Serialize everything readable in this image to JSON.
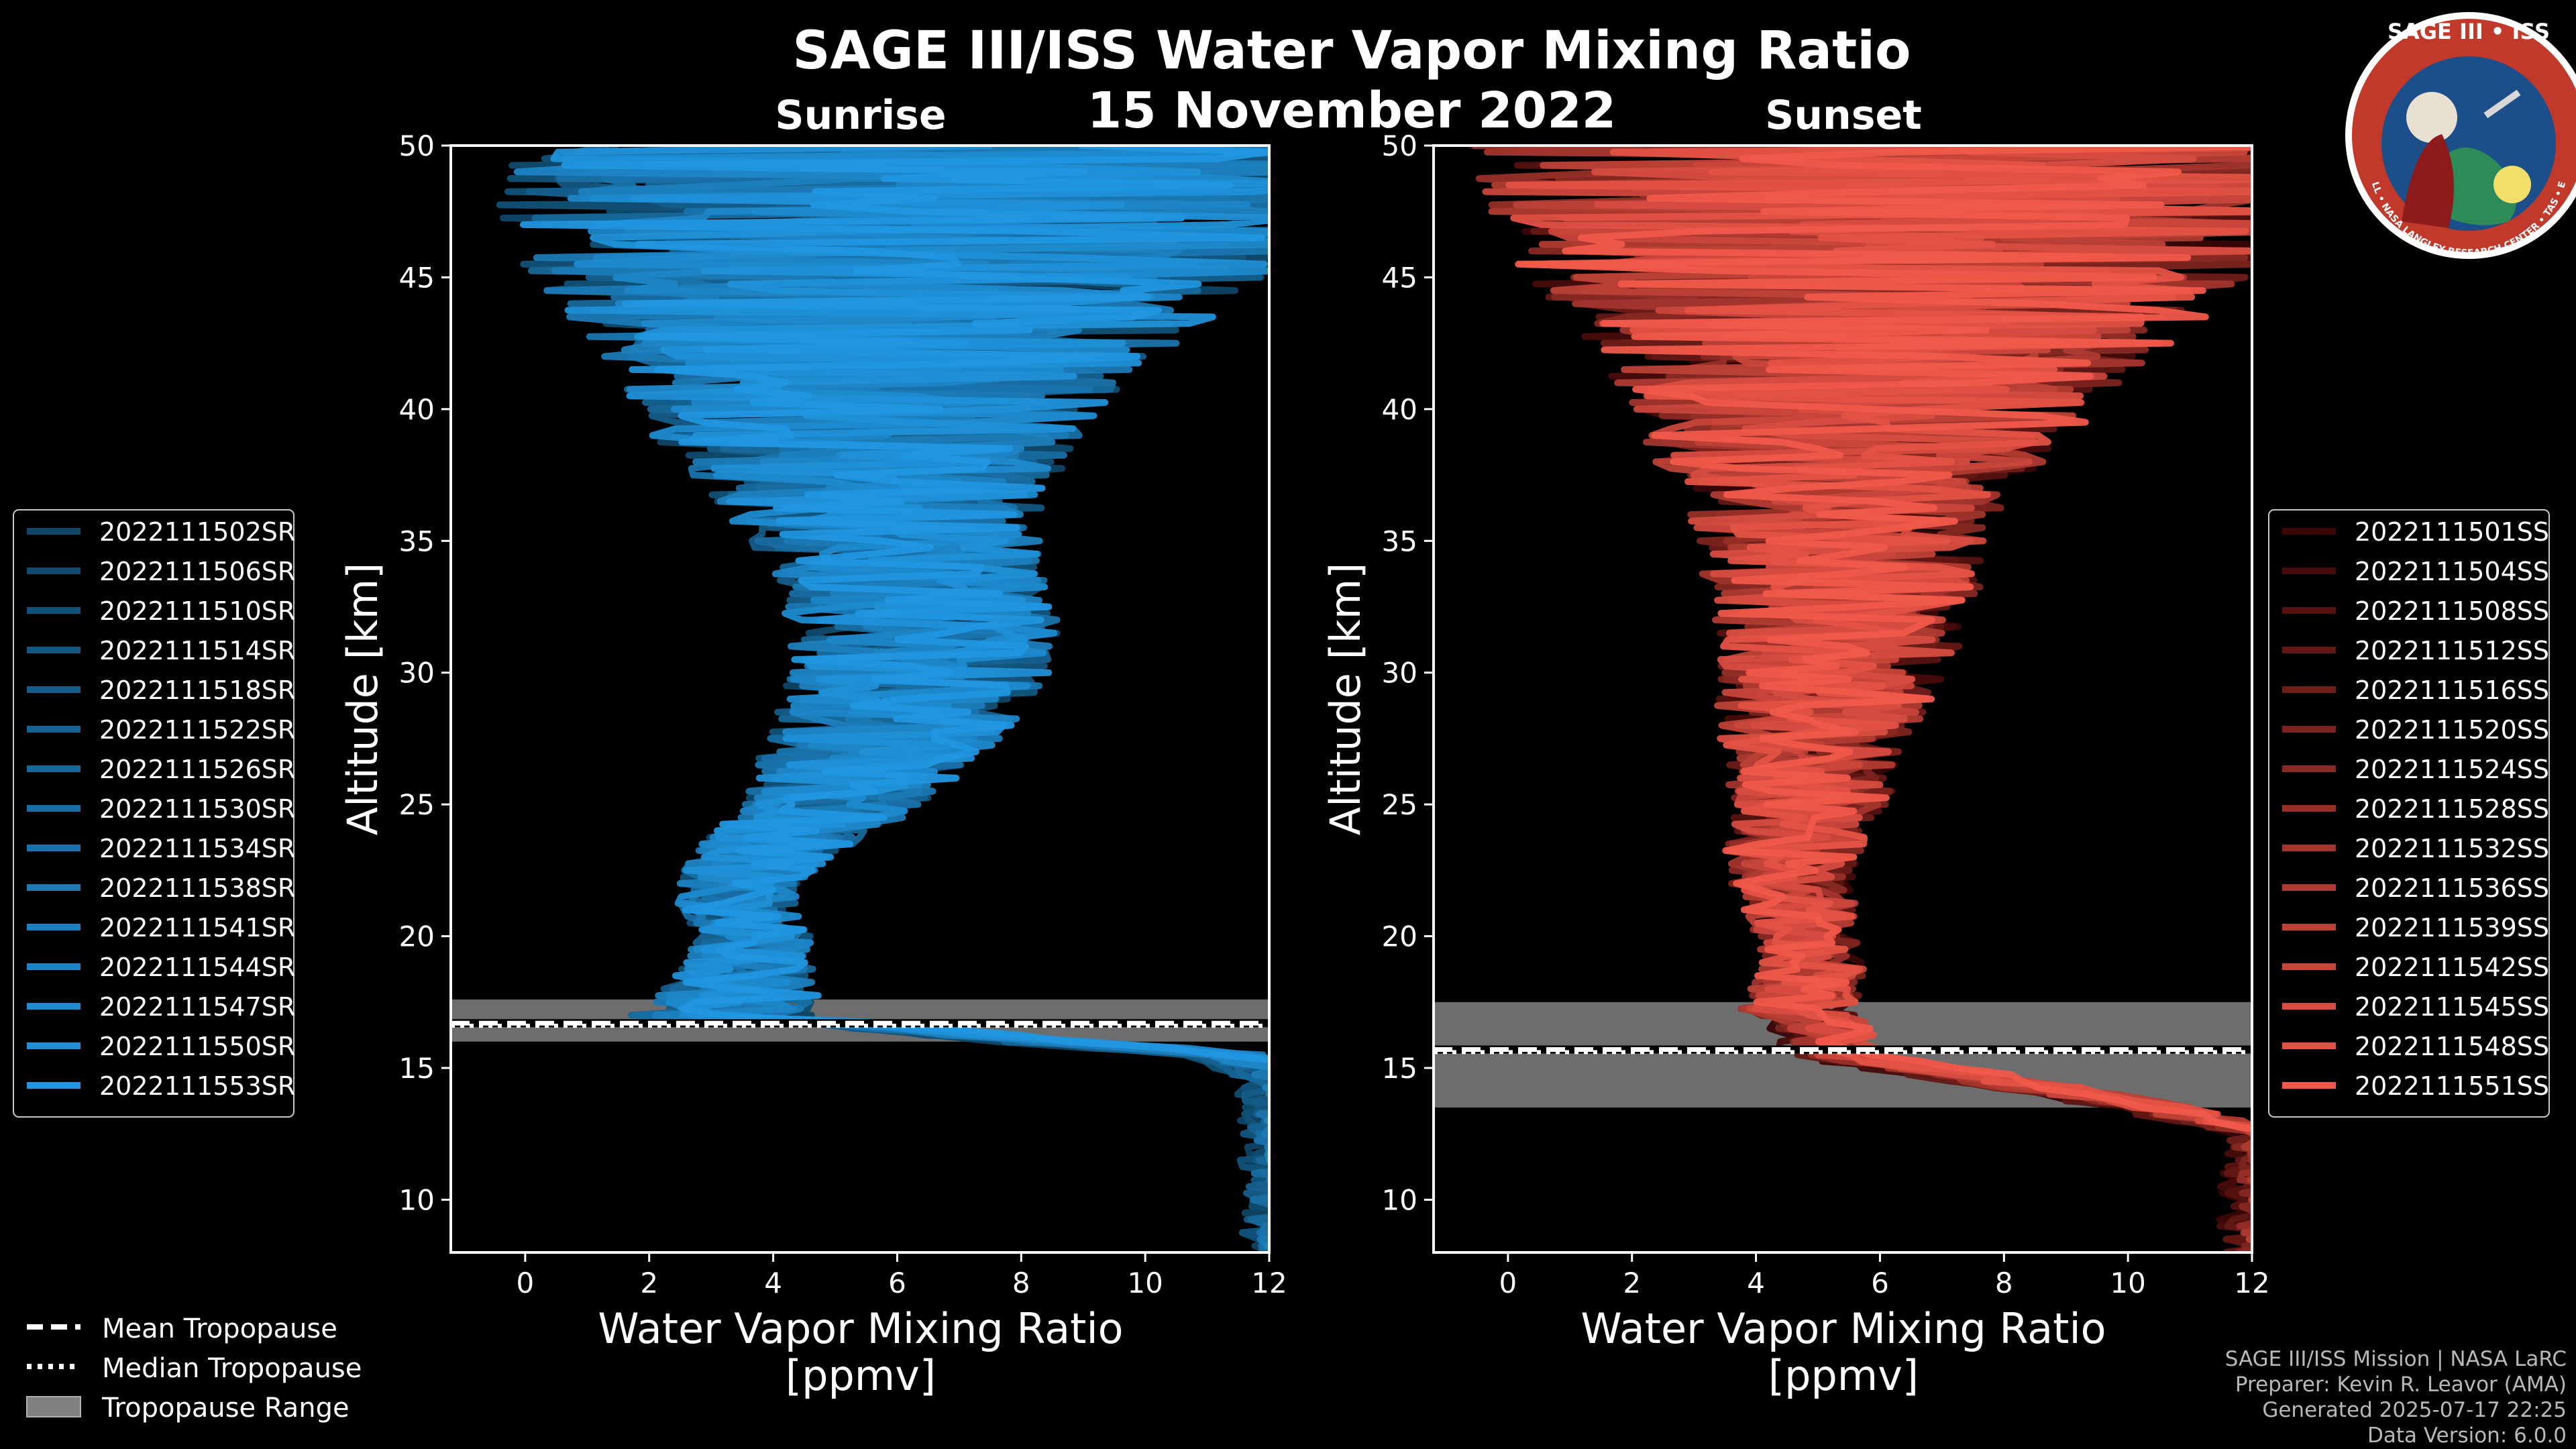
{
  "figure": {
    "title": "SAGE III/ISS Water Vapor Mixing Ratio",
    "date": "15 November 2022",
    "footer": [
      "SAGE III/ISS Mission | NASA LaRC",
      "Preparer: Kevin R. Leavor (AMA)",
      "Generated 2025-07-17 22:25",
      "Data Version: 6.0.0"
    ],
    "logo": {
      "title": "SAGE III • ISS",
      "ring_text": "BALL • NASA LANGLEY RESEARCH CENTER • TAS • ESA",
      "colors": {
        "ring": "#c0392b",
        "inner": "#1c4e8a"
      }
    }
  },
  "chart_data": [
    {
      "type": "line",
      "panel": "sunrise",
      "subtitle": "Sunrise",
      "xlabel": "Water Vapor Mixing Ratio\n[ppmv]",
      "xlabel_lines": [
        "Water Vapor Mixing Ratio",
        "[ppmv]"
      ],
      "ylabel": "Altitude [km]",
      "xlim": [
        -1.2,
        12
      ],
      "ylim": [
        8,
        50
      ],
      "xticks": [
        0,
        2,
        4,
        6,
        8,
        10,
        12
      ],
      "yticks": [
        10,
        15,
        20,
        25,
        30,
        35,
        40,
        45,
        50
      ],
      "color_dark": "#0f4566",
      "color_light": "#2196e0",
      "series": [
        {
          "name": "2022111502SR"
        },
        {
          "name": "2022111506SR"
        },
        {
          "name": "2022111510SR"
        },
        {
          "name": "2022111514SR"
        },
        {
          "name": "2022111518SR"
        },
        {
          "name": "2022111522SR"
        },
        {
          "name": "2022111526SR"
        },
        {
          "name": "2022111530SR"
        },
        {
          "name": "2022111534SR"
        },
        {
          "name": "2022111538SR"
        },
        {
          "name": "2022111541SR"
        },
        {
          "name": "2022111544SR"
        },
        {
          "name": "2022111547SR"
        },
        {
          "name": "2022111550SR"
        },
        {
          "name": "2022111553SR"
        }
      ],
      "mean_profile": [
        [
          8,
          12
        ],
        [
          9.9,
          12
        ],
        [
          10.1,
          12
        ],
        [
          14.5,
          12
        ],
        [
          15.5,
          11
        ],
        [
          16,
          8
        ],
        [
          17,
          3.2
        ],
        [
          17.5,
          3.4
        ],
        [
          18,
          3.5
        ],
        [
          19,
          3.6
        ],
        [
          20,
          3.7
        ],
        [
          21,
          3.4
        ],
        [
          22,
          3.4
        ],
        [
          23,
          3.8
        ],
        [
          24,
          4.4
        ],
        [
          25,
          5
        ],
        [
          26,
          5.3
        ],
        [
          27,
          5.6
        ],
        [
          28,
          5.9
        ],
        [
          29,
          6.1
        ],
        [
          30,
          6.4
        ],
        [
          31,
          6.4
        ],
        [
          32,
          6.4
        ],
        [
          33,
          6.3
        ],
        [
          34,
          6.2
        ],
        [
          35,
          6.0
        ],
        [
          36,
          5.8
        ],
        [
          37,
          5.7
        ],
        [
          38,
          5.6
        ],
        [
          39,
          5.5
        ],
        [
          40,
          5.6
        ],
        [
          41,
          5.7
        ],
        [
          42,
          5.8
        ],
        [
          43,
          5.9
        ],
        [
          44,
          6.0
        ],
        [
          45,
          6.1
        ],
        [
          46,
          6.2
        ],
        [
          47,
          6.3
        ],
        [
          48,
          6.5
        ],
        [
          49,
          6.6
        ],
        [
          50,
          6.7
        ]
      ],
      "spread_profile": [
        [
          17,
          1.5
        ],
        [
          20,
          0.9
        ],
        [
          22,
          1.0
        ],
        [
          25,
          1.5
        ],
        [
          28,
          2.0
        ],
        [
          31,
          2.2
        ],
        [
          34,
          2.2
        ],
        [
          37,
          2.8
        ],
        [
          40,
          3.8
        ],
        [
          43,
          5.0
        ],
        [
          46,
          6.5
        ],
        [
          50,
          7.5
        ]
      ],
      "tropopause": {
        "mean": 16.7,
        "median": 16.6,
        "range": [
          16.0,
          17.6
        ]
      }
    },
    {
      "type": "line",
      "panel": "sunset",
      "subtitle": "Sunset",
      "xlabel": "Water Vapor Mixing Ratio\n[ppmv]",
      "xlabel_lines": [
        "Water Vapor Mixing Ratio",
        "[ppmv]"
      ],
      "ylabel": "Altitude [km]",
      "xlim": [
        -1.2,
        12
      ],
      "ylim": [
        8,
        50
      ],
      "xticks": [
        0,
        2,
        4,
        6,
        8,
        10,
        12
      ],
      "yticks": [
        10,
        15,
        20,
        25,
        30,
        35,
        40,
        45,
        50
      ],
      "color_dark": "#3a0606",
      "color_light": "#f0584a",
      "series": [
        {
          "name": "2022111501SS"
        },
        {
          "name": "2022111504SS"
        },
        {
          "name": "2022111508SS"
        },
        {
          "name": "2022111512SS"
        },
        {
          "name": "2022111516SS"
        },
        {
          "name": "2022111520SS"
        },
        {
          "name": "2022111524SS"
        },
        {
          "name": "2022111528SS"
        },
        {
          "name": "2022111532SS"
        },
        {
          "name": "2022111536SS"
        },
        {
          "name": "2022111539SS"
        },
        {
          "name": "2022111542SS"
        },
        {
          "name": "2022111545SS"
        },
        {
          "name": "2022111548SS"
        },
        {
          "name": "2022111551SS"
        }
      ],
      "mean_profile": [
        [
          8.5,
          12
        ],
        [
          8.7,
          12
        ],
        [
          12.5,
          12
        ],
        [
          13.5,
          10
        ],
        [
          14.5,
          7.5
        ],
        [
          15.5,
          5.0
        ],
        [
          16.5,
          4.6
        ],
        [
          17.5,
          4.7
        ],
        [
          18,
          4.8
        ],
        [
          19,
          4.9
        ],
        [
          20,
          4.8
        ],
        [
          21,
          4.7
        ],
        [
          22,
          4.6
        ],
        [
          23,
          4.6
        ],
        [
          24,
          4.7
        ],
        [
          25,
          4.8
        ],
        [
          26,
          4.9
        ],
        [
          27,
          4.9
        ],
        [
          28,
          5.0
        ],
        [
          29,
          5.1
        ],
        [
          30,
          5.3
        ],
        [
          31,
          5.4
        ],
        [
          32,
          5.4
        ],
        [
          33,
          5.4
        ],
        [
          34,
          5.4
        ],
        [
          35,
          5.3
        ],
        [
          36,
          5.3
        ],
        [
          37,
          5.4
        ],
        [
          38,
          5.5
        ],
        [
          39,
          5.6
        ],
        [
          40,
          5.8
        ],
        [
          41,
          5.9
        ],
        [
          42,
          6.0
        ],
        [
          43,
          6.1
        ],
        [
          44,
          6.2
        ],
        [
          45,
          6.3
        ],
        [
          46,
          6.4
        ],
        [
          47,
          6.5
        ],
        [
          48,
          6.6
        ],
        [
          49,
          6.7
        ],
        [
          50,
          6.8
        ]
      ],
      "spread_profile": [
        [
          16,
          1.0
        ],
        [
          18,
          0.9
        ],
        [
          20,
          0.8
        ],
        [
          22,
          1.0
        ],
        [
          25,
          1.3
        ],
        [
          28,
          1.6
        ],
        [
          31,
          2.0
        ],
        [
          34,
          2.3
        ],
        [
          37,
          2.8
        ],
        [
          40,
          3.8
        ],
        [
          43,
          5.0
        ],
        [
          46,
          6.5
        ],
        [
          50,
          7.5
        ]
      ],
      "tropopause": {
        "mean": 15.7,
        "median": 15.6,
        "range": [
          13.5,
          17.5
        ]
      }
    }
  ],
  "bottom_legend": {
    "items": [
      {
        "label": "Mean Tropopause",
        "style": "dashed"
      },
      {
        "label": "Median Tropopause",
        "style": "dotted"
      },
      {
        "label": "Tropopause Range",
        "style": "patch",
        "color": "#808080"
      }
    ]
  }
}
